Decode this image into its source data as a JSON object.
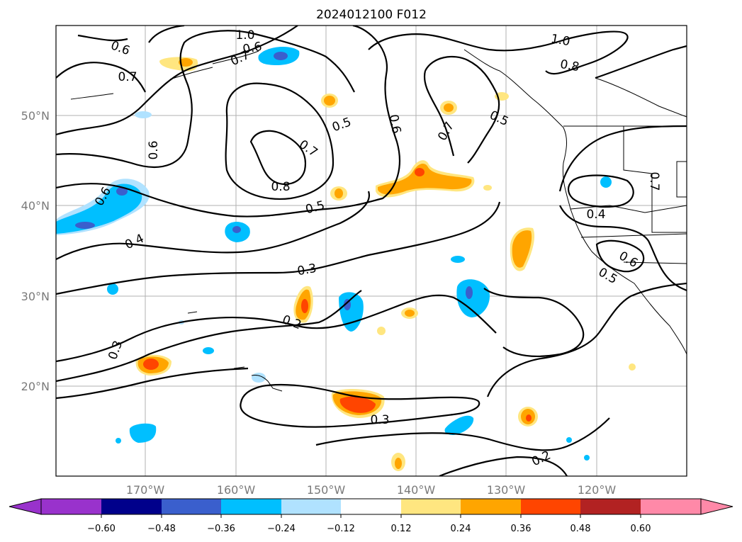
{
  "title": "2024012100 F012",
  "lat_labels": [
    "50°N",
    "40°N",
    "30°N",
    "20°N"
  ],
  "lon_labels": [
    "170°W",
    "160°W",
    "150°W",
    "140°W",
    "130°W",
    "120°W"
  ],
  "colorbar": {
    "ticks": [
      "−0.60",
      "−0.48",
      "−0.36",
      "−0.24",
      "−0.12",
      "0.12",
      "0.24",
      "0.36",
      "0.48",
      "0.60"
    ],
    "colors": [
      "#9932cc",
      "#00008b",
      "#3a5fcd",
      "#00bfff",
      "#b0e2ff",
      "#ffffff",
      "#ffe680",
      "#ffa500",
      "#ff4500",
      "#b22222",
      "#ff89a8"
    ]
  },
  "contour_labels": [
    "0.6",
    "1.0",
    "0.6",
    "0.7",
    "0.7",
    "1.0",
    "0.8",
    "0.5",
    "0.6",
    "0.7",
    "0.5",
    "0.7",
    "0.8",
    "0.5",
    "0.6",
    "0.6",
    "0.4",
    "0.7",
    "0.4",
    "0.6",
    "0.5",
    "0.3",
    "0.2",
    "0.3",
    "0.3",
    "0.2"
  ]
}
